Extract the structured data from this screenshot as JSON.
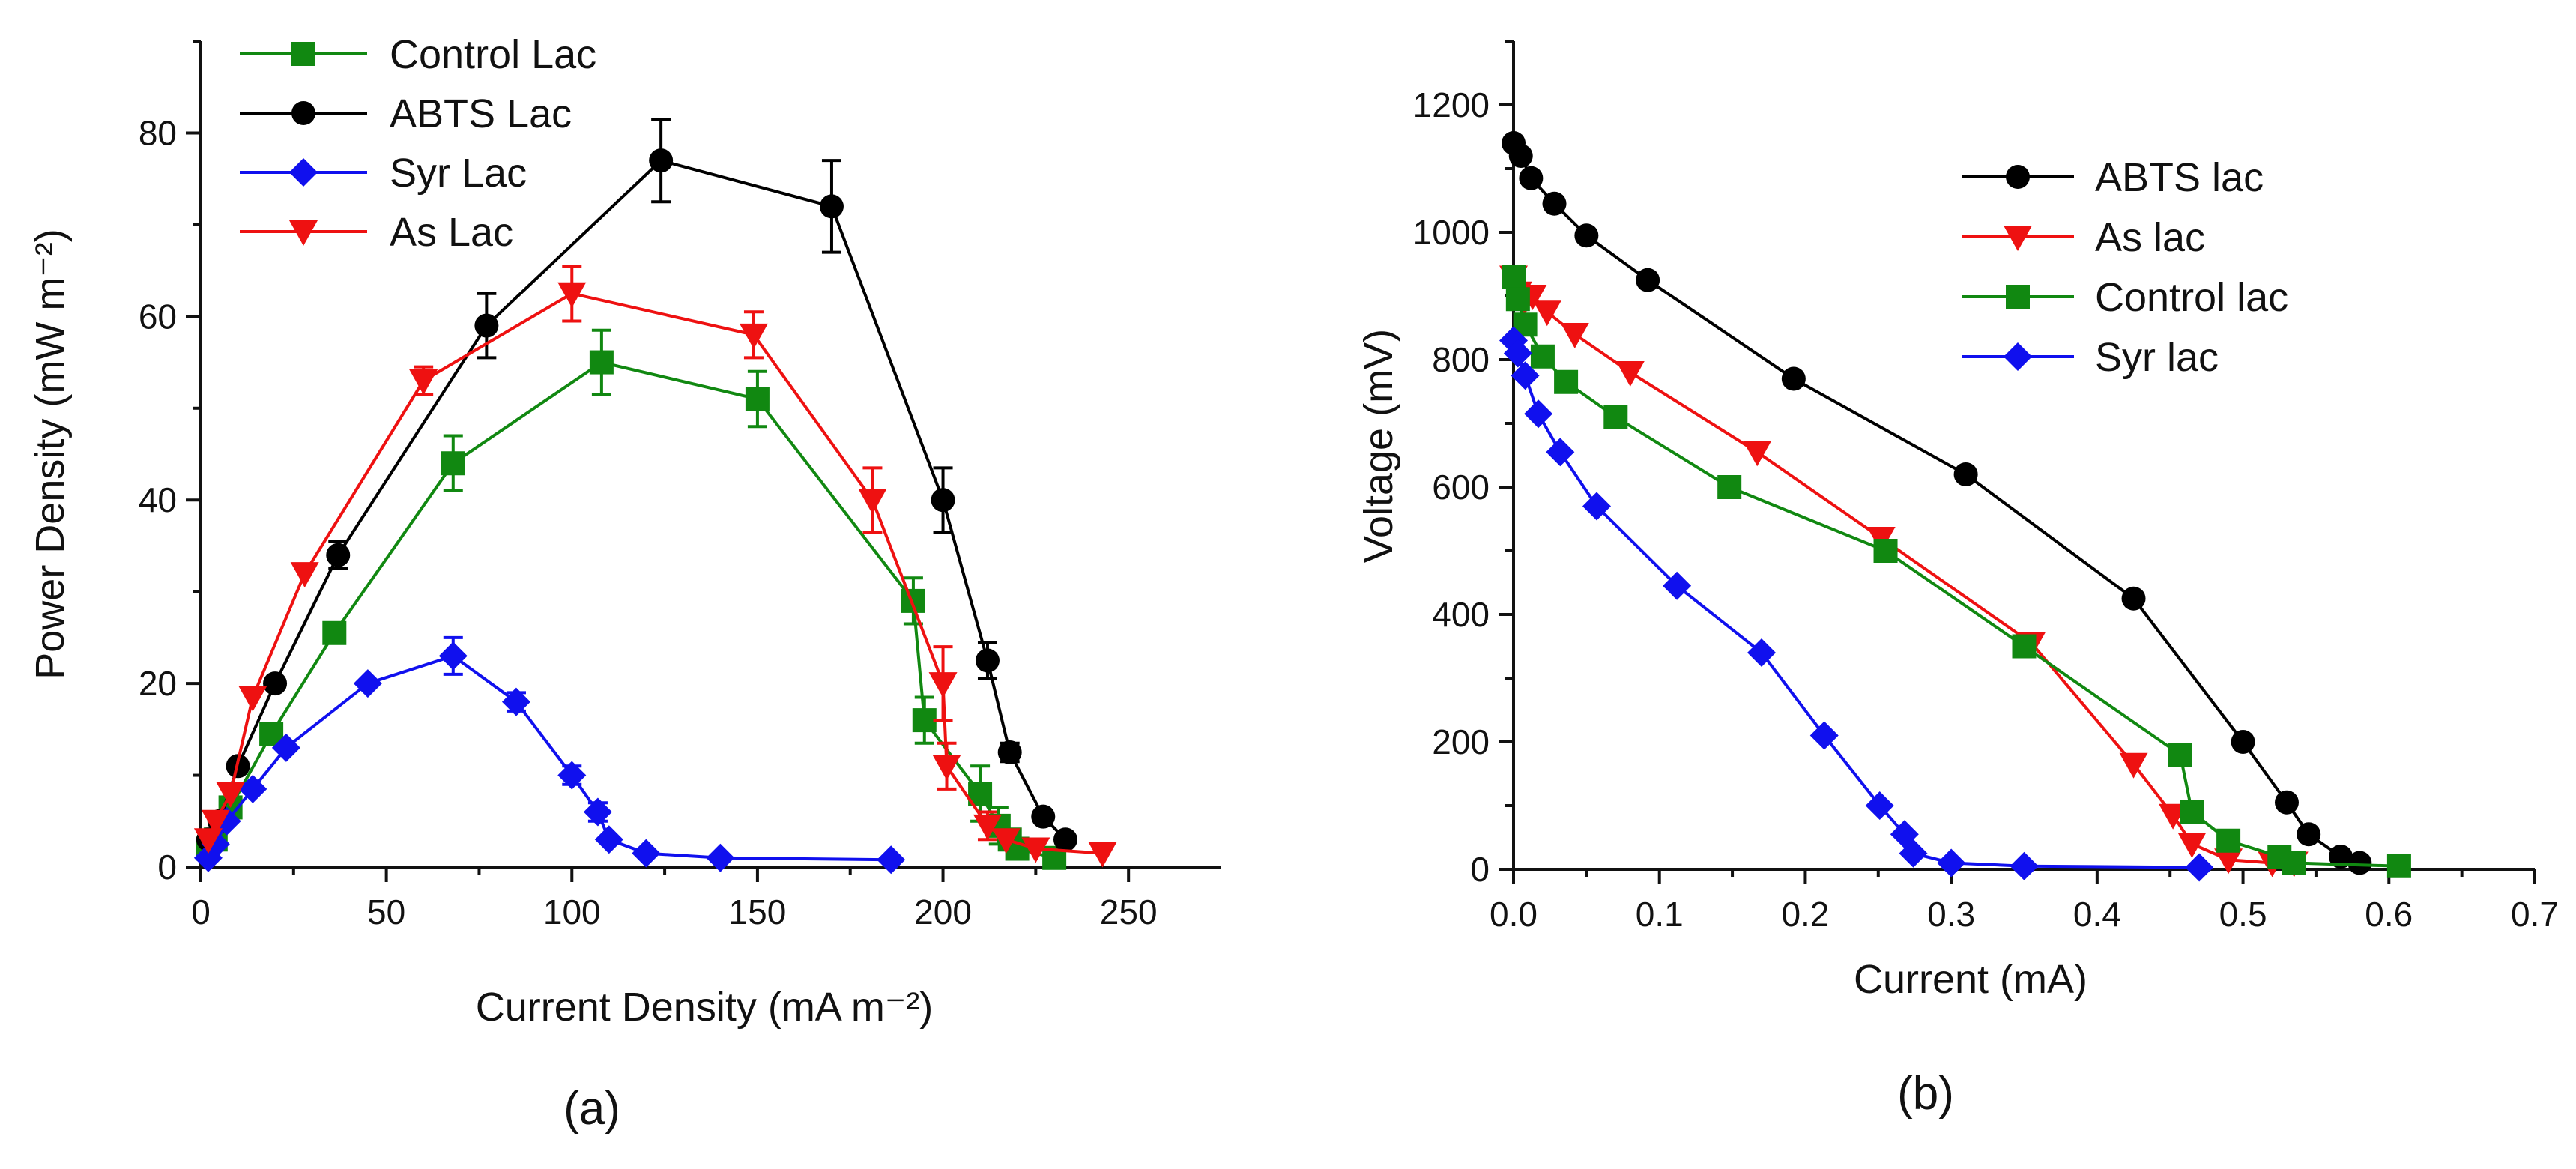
{
  "chart_data": [
    {
      "type": "line",
      "panel_label": "(a)",
      "xlabel": "Current Density (mA m⁻²)",
      "ylabel": "Power Density (mW m⁻²)",
      "xlim": [
        0,
        275
      ],
      "ylim": [
        0,
        90
      ],
      "xticks": [
        0,
        50,
        100,
        150,
        200,
        250
      ],
      "yticks": [
        0,
        20,
        40,
        60,
        80
      ],
      "grid": false,
      "legend": "top-left",
      "series": [
        {
          "name": "Control Lac",
          "color": "#118811",
          "marker": "square",
          "x": [
            2,
            4,
            8,
            19,
            36,
            68,
            108,
            150,
            192,
            195,
            210,
            215,
            218,
            220,
            230
          ],
          "y": [
            2,
            3,
            6.5,
            14.5,
            25.5,
            44,
            55,
            51,
            29,
            16,
            8,
            4.5,
            3,
            2,
            1
          ],
          "err": [
            0,
            0,
            0,
            0,
            1,
            3,
            3.5,
            3,
            2.5,
            2.5,
            3,
            2,
            0,
            0,
            0
          ]
        },
        {
          "name": "ABTS Lac",
          "color": "#000000",
          "marker": "circle",
          "x": [
            2,
            5,
            10,
            20,
            37,
            77,
            124,
            170,
            200,
            212,
            218,
            227,
            233
          ],
          "y": [
            3,
            5,
            11,
            20,
            34,
            59,
            77,
            72,
            40,
            22.5,
            12.5,
            5.5,
            3
          ],
          "err": [
            0,
            0,
            0,
            0,
            1.5,
            3.5,
            4.5,
            5,
            3.5,
            2,
            1,
            0,
            0
          ]
        },
        {
          "name": "Syr Lac",
          "color": "#1010ee",
          "marker": "diamond",
          "x": [
            2,
            4,
            7,
            14,
            23,
            45,
            68,
            85,
            100,
            107,
            110,
            120,
            140,
            186
          ],
          "y": [
            1,
            2.5,
            5,
            8.5,
            13,
            20,
            23,
            18,
            10,
            6,
            3,
            1.5,
            1,
            0.8
          ],
          "err": [
            0,
            0,
            0,
            0,
            0,
            0,
            2,
            1,
            1,
            1,
            0,
            0,
            0,
            0
          ]
        },
        {
          "name": "As Lac",
          "color": "#ee1111",
          "marker": "triangle-down",
          "x": [
            2,
            4,
            8,
            14,
            28,
            60,
            100,
            149,
            181,
            200,
            201,
            212,
            217,
            225,
            243
          ],
          "y": [
            3,
            5,
            8,
            18.5,
            32,
            53,
            62.5,
            58,
            40,
            20,
            11,
            4.5,
            3,
            2,
            1.5
          ],
          "err": [
            0,
            0,
            0,
            0,
            0,
            1.5,
            3,
            2.5,
            3.5,
            4,
            2.5,
            1.5,
            0,
            0,
            0
          ]
        }
      ]
    },
    {
      "type": "line",
      "panel_label": "(b)",
      "xlabel": "Current (mA)",
      "ylabel": "Voltage (mV)",
      "xlim": [
        0,
        0.7
      ],
      "ylim": [
        0,
        1300
      ],
      "xticks": [
        0.0,
        0.1,
        0.2,
        0.3,
        0.4,
        0.5,
        0.6,
        0.7
      ],
      "yticks": [
        0,
        200,
        400,
        600,
        800,
        1000,
        1200
      ],
      "grid": false,
      "legend": "top-right",
      "series": [
        {
          "name": "ABTS lac",
          "color": "#000000",
          "marker": "circle",
          "x": [
            0.0,
            0.005,
            0.012,
            0.028,
            0.05,
            0.092,
            0.192,
            0.31,
            0.425,
            0.5,
            0.53,
            0.545,
            0.567,
            0.58
          ],
          "y": [
            1140,
            1120,
            1085,
            1045,
            995,
            925,
            770,
            620,
            425,
            200,
            105,
            55,
            20,
            10
          ]
        },
        {
          "name": "As lac",
          "color": "#ee1111",
          "marker": "triangle-down",
          "x": [
            0.0,
            0.003,
            0.007,
            0.013,
            0.023,
            0.042,
            0.08,
            0.167,
            0.252,
            0.355,
            0.425,
            0.452,
            0.465,
            0.49,
            0.52,
            0.535
          ],
          "y": [
            930,
            905,
            890,
            900,
            875,
            840,
            780,
            655,
            520,
            355,
            165,
            85,
            40,
            15,
            10,
            10
          ]
        },
        {
          "name": "Control lac",
          "color": "#118811",
          "marker": "square",
          "x": [
            0.0,
            0.003,
            0.008,
            0.02,
            0.036,
            0.07,
            0.148,
            0.255,
            0.35,
            0.457,
            0.465,
            0.49,
            0.525,
            0.535,
            0.607
          ],
          "y": [
            930,
            895,
            855,
            805,
            765,
            710,
            600,
            500,
            350,
            180,
            90,
            45,
            20,
            10,
            5
          ]
        },
        {
          "name": "Syr lac",
          "color": "#1010ee",
          "marker": "diamond",
          "x": [
            0.0,
            0.003,
            0.008,
            0.017,
            0.032,
            0.057,
            0.112,
            0.17,
            0.213,
            0.251,
            0.268,
            0.274,
            0.3,
            0.35,
            0.47
          ],
          "y": [
            830,
            810,
            775,
            715,
            655,
            570,
            445,
            340,
            210,
            100,
            55,
            25,
            10,
            5,
            3
          ]
        }
      ]
    }
  ]
}
